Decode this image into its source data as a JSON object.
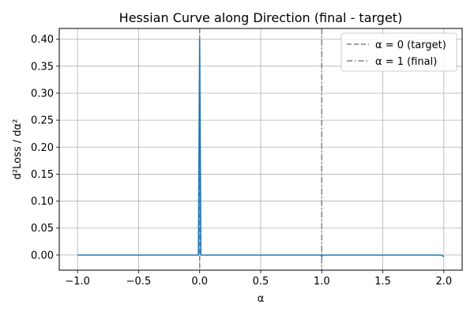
{
  "chart_data": {
    "type": "line",
    "title": "Hessian Curve along Direction (final - target)",
    "xlabel": "α",
    "ylabel": "d²Loss / dα²",
    "xlim": [
      -1.15,
      2.15
    ],
    "ylim": [
      -0.028,
      0.42
    ],
    "x_ticks": [
      -1.0,
      -0.5,
      0.0,
      0.5,
      1.0,
      1.5,
      2.0
    ],
    "x_tick_labels": [
      "−1.0",
      "−0.5",
      "0.0",
      "0.5",
      "1.0",
      "1.5",
      "2.0"
    ],
    "y_ticks": [
      0.0,
      0.05,
      0.1,
      0.15,
      0.2,
      0.25,
      0.3,
      0.35,
      0.4
    ],
    "y_tick_labels": [
      "0.00",
      "0.05",
      "0.10",
      "0.15",
      "0.20",
      "0.25",
      "0.30",
      "0.35",
      "0.40"
    ],
    "grid": true,
    "legend_placement": "top-right",
    "series": [
      {
        "color": "#1f77b4",
        "x": [
          -1.0,
          -0.02,
          -0.01,
          0.0,
          0.01,
          0.02,
          0.98,
          0.995,
          1.0,
          1.005,
          1.02,
          1.98,
          2.0
        ],
        "y": [
          0.0,
          0.0,
          0.0,
          0.4,
          0.0,
          0.0,
          0.0,
          0.0,
          -0.003,
          0.0,
          0.0,
          0.0,
          -0.003
        ]
      }
    ],
    "vlines": [
      {
        "x": 0,
        "label": "α = 0 (target)",
        "style": "dashed",
        "color": "#808080"
      },
      {
        "x": 1,
        "label": "α = 1 (final)",
        "style": "dashdot",
        "color": "#808080"
      }
    ]
  }
}
